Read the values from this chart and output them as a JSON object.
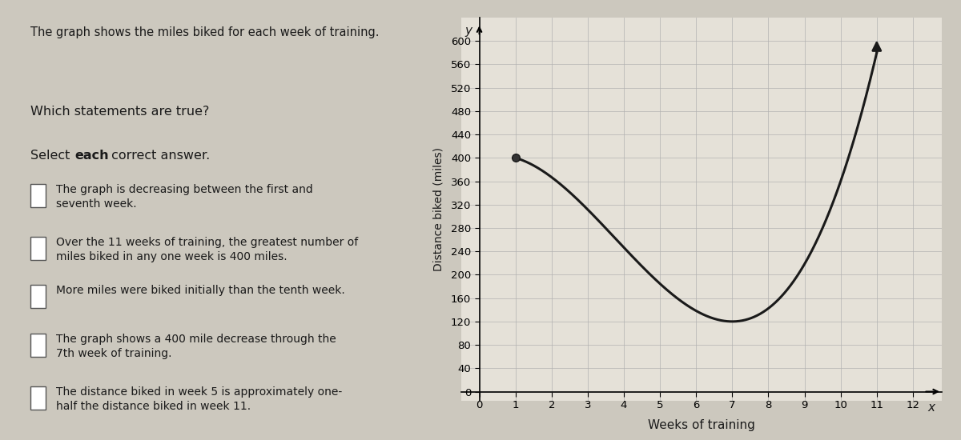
{
  "title": "The graph shows the miles biked for each week of training.",
  "xlabel": "Weeks of training",
  "ylabel": "Distance biked (miles)",
  "x_label_axis": "x",
  "y_label_axis": "y",
  "key_points_x": [
    1,
    7,
    11
  ],
  "key_points_y": [
    400,
    120,
    580
  ],
  "x_ticks": [
    0,
    1,
    2,
    3,
    4,
    5,
    6,
    7,
    8,
    9,
    10,
    11,
    12
  ],
  "y_ticks": [
    0,
    40,
    80,
    120,
    160,
    200,
    240,
    280,
    320,
    360,
    400,
    440,
    480,
    520,
    560,
    600
  ],
  "xlim": [
    -0.5,
    12.8
  ],
  "ylim": [
    -15,
    640
  ],
  "dot_x": 1,
  "dot_y": 400,
  "curve_color": "#1a1a1a",
  "dot_color": "#1a1a1a",
  "bg_color": "#e5e1d8",
  "panel_bg": "#ccc8be",
  "grid_color": "#b0b0b0",
  "text_color": "#1a1a1a",
  "purple_bar_color": "#7B5EA7",
  "statements": [
    "The graph is decreasing between the first and\nseventh week.",
    "Over the 11 weeks of training, the greatest number of\nmiles biked in any one week is 400 miles.",
    "More miles were biked initially than the tenth week.",
    "The graph shows a 400 mile decrease through the\n7th week of training.",
    "The distance biked in week 5 is approximately one-\nhalf the distance biked in week 11."
  ],
  "top_text": "The graph shows the miles biked for each week of training.",
  "which_text": "Which statements are true?",
  "select_normal": "Select ",
  "select_bold": "each",
  "select_rest": " correct answer."
}
